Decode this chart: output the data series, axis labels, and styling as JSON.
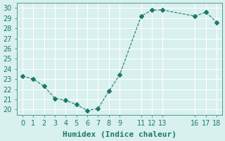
{
  "x": [
    0,
    1,
    2,
    3,
    4,
    5,
    6,
    7,
    8,
    9,
    11,
    12,
    13,
    16,
    17,
    18
  ],
  "y": [
    23.3,
    23.0,
    22.3,
    21.1,
    20.9,
    20.5,
    19.9,
    20.1,
    21.8,
    23.4,
    29.2,
    29.8,
    29.8,
    29.2,
    29.6,
    28.6
  ],
  "xlim": [
    -0.5,
    18.5
  ],
  "ylim": [
    19.5,
    30.5
  ],
  "yticks": [
    20,
    21,
    22,
    23,
    24,
    25,
    26,
    27,
    28,
    29,
    30
  ],
  "xticks": [
    0,
    1,
    2,
    3,
    4,
    5,
    6,
    7,
    8,
    9,
    11,
    12,
    13,
    16,
    17,
    18
  ],
  "xlabel": "Humidex (Indice chaleur)",
  "line_color": "#1a7a6e",
  "marker": "D",
  "marker_size": 3,
  "line_width": 0.8,
  "background_color": "#d8f0ee",
  "grid_color": "#ffffff",
  "tick_label_color": "#1a7a6e",
  "axis_label_color": "#1a7a6e",
  "label_fontsize": 8,
  "tick_fontsize": 7
}
